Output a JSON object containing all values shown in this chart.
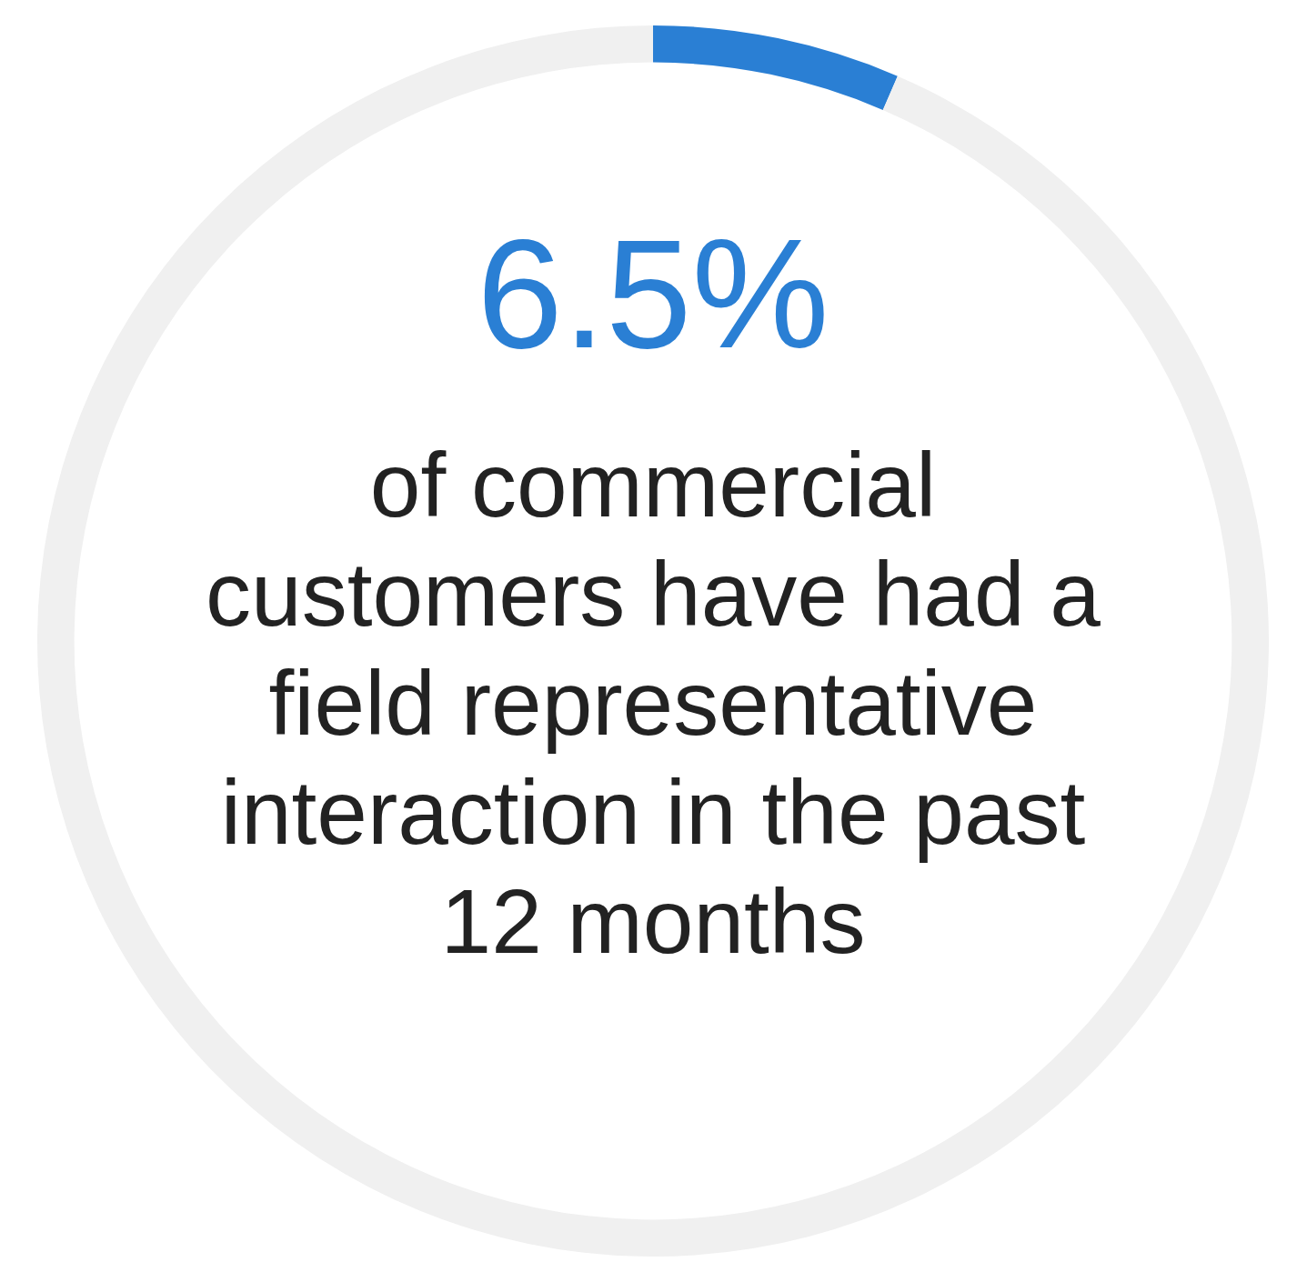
{
  "chart_data": {
    "type": "donut",
    "categories": [
      null,
      null
    ],
    "values": [
      6.5,
      93.5
    ],
    "colors": [
      "#2a7fd4",
      "#f0f0f0"
    ],
    "value_labels": [
      "6.5%",
      null
    ],
    "legend": false,
    "annotations": [
      "of commercial customers have had a field representative interaction in the past 12 months"
    ]
  }
}
